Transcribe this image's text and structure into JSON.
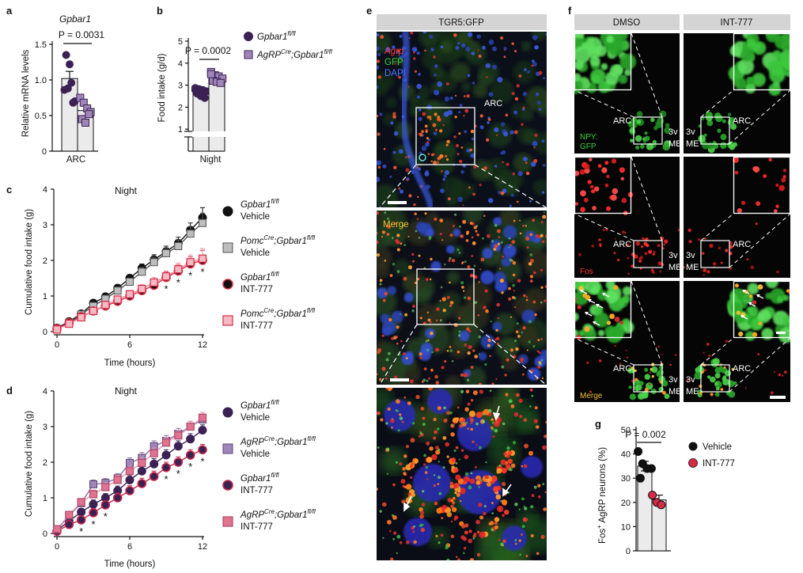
{
  "panels": {
    "a": "a",
    "b": "b",
    "c": "c",
    "d": "d",
    "e": "e",
    "f": "f",
    "g": "g"
  },
  "colors": {
    "vehicle_black": "#111111",
    "pomc_grey": "#bdbdbd",
    "int777_red": "#d62b45",
    "agrp_purple": "#3b2154",
    "agrp_light": "#9f85b8",
    "int777_pink": "#e1738f",
    "bar_fill": "#ebebeb"
  },
  "panel_e": {
    "header": "TGR5:GFP",
    "stain_agrp": "Agrp",
    "stain_gfp": "GFP",
    "stain_dapi": "DAPI",
    "arc": "ARC",
    "merge": "Merge"
  },
  "panel_f": {
    "header_dmso": "DMSO",
    "header_int": "INT-777",
    "arc": "ARC",
    "third_v": "3v",
    "me": "ME",
    "npy_line1": "NPY:",
    "npy_line2": "GFP",
    "fos": "Fos",
    "merge": "Merge"
  },
  "chart_data": [
    {
      "panel": "a",
      "type": "bar",
      "title": "Gpbar1",
      "pvalue": "P = 0.0031",
      "categories": [
        "Gpbar1 fl/fl",
        "AgRP Cre;Gpbar1 fl/fl"
      ],
      "values": [
        1.02,
        0.57
      ],
      "errors": [
        0.1,
        0.07
      ],
      "points": [
        [
          0.86,
          0.88,
          0.96,
          0.7,
          1.35,
          1.22,
          0.68
        ],
        [
          0.75,
          0.68,
          0.6,
          0.55,
          0.45,
          0.4,
          0.52
        ]
      ],
      "xlabel": "ARC",
      "ylabel": "Relative mRNA levels",
      "yticks": [
        "0",
        "0.5",
        "1.0",
        "1.5"
      ],
      "ylim": [
        0,
        1.5
      ]
    },
    {
      "panel": "b",
      "type": "bar",
      "pvalue": "P = 0.0002",
      "categories": [
        "Gpbar1 fl/fl",
        "AgRP Cre;Gpbar1 fl/fl"
      ],
      "values": [
        2.68,
        3.3
      ],
      "errors": [
        0.08,
        0.1
      ],
      "points": [
        [
          2.87,
          2.82,
          2.78,
          2.72,
          2.62,
          2.5,
          2.42,
          2.78
        ],
        [
          3.6,
          3.45,
          3.4,
          3.3,
          3.2,
          3.15,
          3.1,
          3.5
        ]
      ],
      "xlabel": "Night",
      "ylabel": "Food intake (g/d)",
      "yticks": [
        "1",
        "2",
        "3",
        "4",
        "5"
      ],
      "ylim": [
        0,
        5
      ],
      "axis_break": true,
      "legend": [
        {
          "name_prefix": "Gpbar1",
          "name_sup": "fl/fl",
          "name_mid": "",
          "name_rest": ""
        },
        {
          "name_prefix": "AgRP",
          "name_sup": "Cre",
          "name_mid": ";Gpbar1",
          "name_rest": "fl/fl"
        }
      ]
    },
    {
      "panel": "c",
      "type": "line",
      "title": "Night",
      "xlabel": "Time (hours)",
      "ylabel": "Cumulative food intake (g)",
      "xticks": [
        "0",
        "6",
        "12"
      ],
      "yticks": [
        "0",
        "1",
        "2",
        "3",
        "4"
      ],
      "xlim": [
        0,
        12
      ],
      "ylim": [
        0,
        4
      ],
      "x": [
        0,
        1,
        2,
        3,
        4,
        5,
        6,
        7,
        8,
        9,
        10,
        11,
        12
      ],
      "series": [
        {
          "name_a": "Gpbar1",
          "name_sup": "fl/fl",
          "name_b": "",
          "name_sup2": "",
          "name_line2": "Vehicle",
          "values": [
            0.1,
            0.28,
            0.5,
            0.8,
            0.98,
            1.22,
            1.5,
            1.78,
            2.02,
            2.25,
            2.48,
            2.85,
            3.2
          ]
        },
        {
          "name_a": "Pomc",
          "name_sup": "Cre",
          "name_b": ";Gpbar1",
          "name_sup2": "fl/fl",
          "name_line2": "Vehicle",
          "values": [
            0.08,
            0.25,
            0.48,
            0.72,
            0.92,
            1.15,
            1.4,
            1.68,
            1.95,
            2.2,
            2.4,
            2.75,
            3.05
          ]
        },
        {
          "name_a": "Gpbar1",
          "name_sup": "fl/fl",
          "name_b": "",
          "name_sup2": "",
          "name_line2": "INT-777",
          "values": [
            0.08,
            0.25,
            0.42,
            0.58,
            0.72,
            0.85,
            1.0,
            1.15,
            1.3,
            1.52,
            1.7,
            1.9,
            2.0
          ]
        },
        {
          "name_a": "Pomc",
          "name_sup": "Cre",
          "name_b": ";Gpbar1",
          "name_sup2": "fl/fl",
          "name_line2": "INT-777",
          "values": [
            0.06,
            0.22,
            0.4,
            0.58,
            0.75,
            0.9,
            1.05,
            1.2,
            1.38,
            1.55,
            1.75,
            1.95,
            2.05
          ]
        }
      ],
      "errors": [
        0.05,
        0.06,
        0.07,
        0.08,
        0.09,
        0.1,
        0.1,
        0.12,
        0.14,
        0.15,
        0.17,
        0.2,
        0.28
      ],
      "stars_x": [
        9,
        10,
        11,
        12
      ],
      "star": "*"
    },
    {
      "panel": "d",
      "type": "line",
      "title": "Night",
      "xlabel": "Time (hours)",
      "ylabel": "Cumulative food intake (g)",
      "xticks": [
        "0",
        "6",
        "12"
      ],
      "yticks": [
        "0",
        "1",
        "2",
        "3",
        "4"
      ],
      "xlim": [
        0,
        12
      ],
      "ylim": [
        0,
        4
      ],
      "x": [
        0,
        1,
        2,
        3,
        4,
        5,
        6,
        7,
        8,
        9,
        10,
        11,
        12
      ],
      "series": [
        {
          "name_a": "Gpbar1",
          "name_sup": "fl/fl",
          "name_b": "",
          "name_sup2": "",
          "name_line2": "Vehicle",
          "values": [
            0.08,
            0.35,
            0.6,
            0.82,
            1.0,
            1.2,
            1.5,
            1.75,
            1.95,
            2.2,
            2.45,
            2.65,
            2.9
          ]
        },
        {
          "name_a": "AgRP",
          "name_sup": "Cre",
          "name_b": ";Gpbar1",
          "name_sup2": "fl/fl",
          "name_line2": "Vehicle",
          "values": [
            0.1,
            0.5,
            0.85,
            1.38,
            1.42,
            1.55,
            1.98,
            2.12,
            2.45,
            2.6,
            2.8,
            3.0,
            3.2
          ]
        },
        {
          "name_a": "Gpbar1",
          "name_sup": "fl/fl",
          "name_b": "",
          "name_sup2": "",
          "name_line2": "INT-777",
          "values": [
            0.06,
            0.25,
            0.38,
            0.58,
            0.8,
            1.0,
            1.2,
            1.4,
            1.6,
            1.85,
            2.0,
            2.2,
            2.35
          ]
        },
        {
          "name_a": "AgRP",
          "name_sup": "Cre",
          "name_b": ";Gpbar1",
          "name_sup2": "fl/fl",
          "name_line2": "INT-777",
          "values": [
            0.12,
            0.52,
            0.88,
            1.1,
            1.3,
            1.5,
            1.75,
            1.98,
            2.25,
            2.55,
            2.75,
            3.0,
            3.25
          ]
        }
      ],
      "errors": [
        0.05,
        0.08,
        0.1,
        0.12,
        0.12,
        0.13,
        0.14,
        0.15,
        0.15,
        0.15,
        0.15,
        0.15,
        0.15
      ],
      "stars_x": [
        2,
        3,
        4,
        9,
        10,
        11,
        12
      ],
      "star": "*"
    },
    {
      "panel": "g",
      "type": "bar",
      "pvalue": "P = 0.002",
      "categories": [
        "Vehicle",
        "INT-777"
      ],
      "values": [
        35,
        21
      ],
      "errors": [
        2,
        2
      ],
      "points": [
        [
          41,
          36,
          34,
          34,
          30
        ],
        [
          23,
          20,
          19
        ]
      ],
      "ylabel_prefix": "Fos",
      "ylabel_sup": "+",
      "ylabel_rest": " AgRP neurons (%)",
      "yticks": [
        "0",
        "10",
        "20",
        "30",
        "40",
        "50"
      ],
      "ylim": [
        0,
        50
      ],
      "legend": [
        "Vehicle",
        "INT-777"
      ]
    }
  ]
}
